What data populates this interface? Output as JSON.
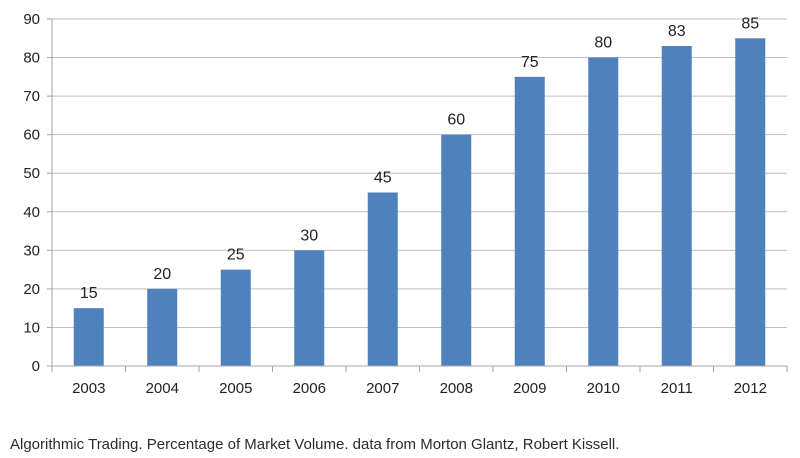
{
  "caption": "Algorithmic Trading. Percentage of Market Volume. data from Morton Glantz, Robert Kissell.",
  "chart_data": {
    "type": "bar",
    "title": "",
    "xlabel": "",
    "ylabel": "",
    "categories": [
      "2003",
      "2004",
      "2005",
      "2006",
      "2007",
      "2008",
      "2009",
      "2010",
      "2011",
      "2012"
    ],
    "values": [
      15,
      20,
      25,
      30,
      45,
      60,
      75,
      80,
      83,
      85
    ],
    "ylim": [
      0,
      90
    ],
    "yticks": [
      0,
      10,
      20,
      30,
      40,
      50,
      60,
      70,
      80,
      90
    ],
    "grid": true,
    "legend": "none",
    "data_labels": true,
    "colors": {
      "bar": "#4f81bd",
      "grid": "#bfbfbf",
      "axis": "#a6a6a6"
    }
  }
}
